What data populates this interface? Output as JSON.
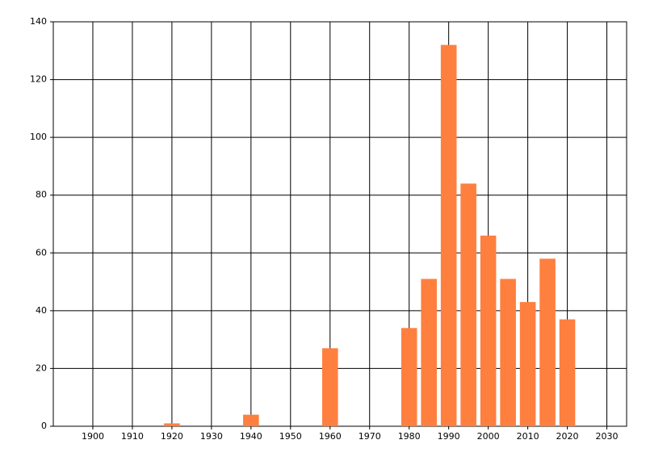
{
  "chart_data": {
    "type": "bar",
    "x": [
      1920,
      1940,
      1960,
      1980,
      1985,
      1990,
      1995,
      2000,
      2005,
      2010,
      2015,
      2020
    ],
    "values": [
      1,
      4,
      27,
      34,
      51,
      132,
      84,
      66,
      51,
      43,
      58,
      37
    ],
    "color": "#ff7f3f",
    "xlim": [
      1890,
      2035
    ],
    "xticks": [
      1900,
      1910,
      1920,
      1930,
      1940,
      1950,
      1960,
      1970,
      1980,
      1990,
      2000,
      2010,
      2020,
      2030
    ],
    "ylim": [
      0,
      140
    ],
    "yticks": [
      0,
      20,
      40,
      60,
      80,
      100,
      120,
      140
    ],
    "grid": true
  }
}
